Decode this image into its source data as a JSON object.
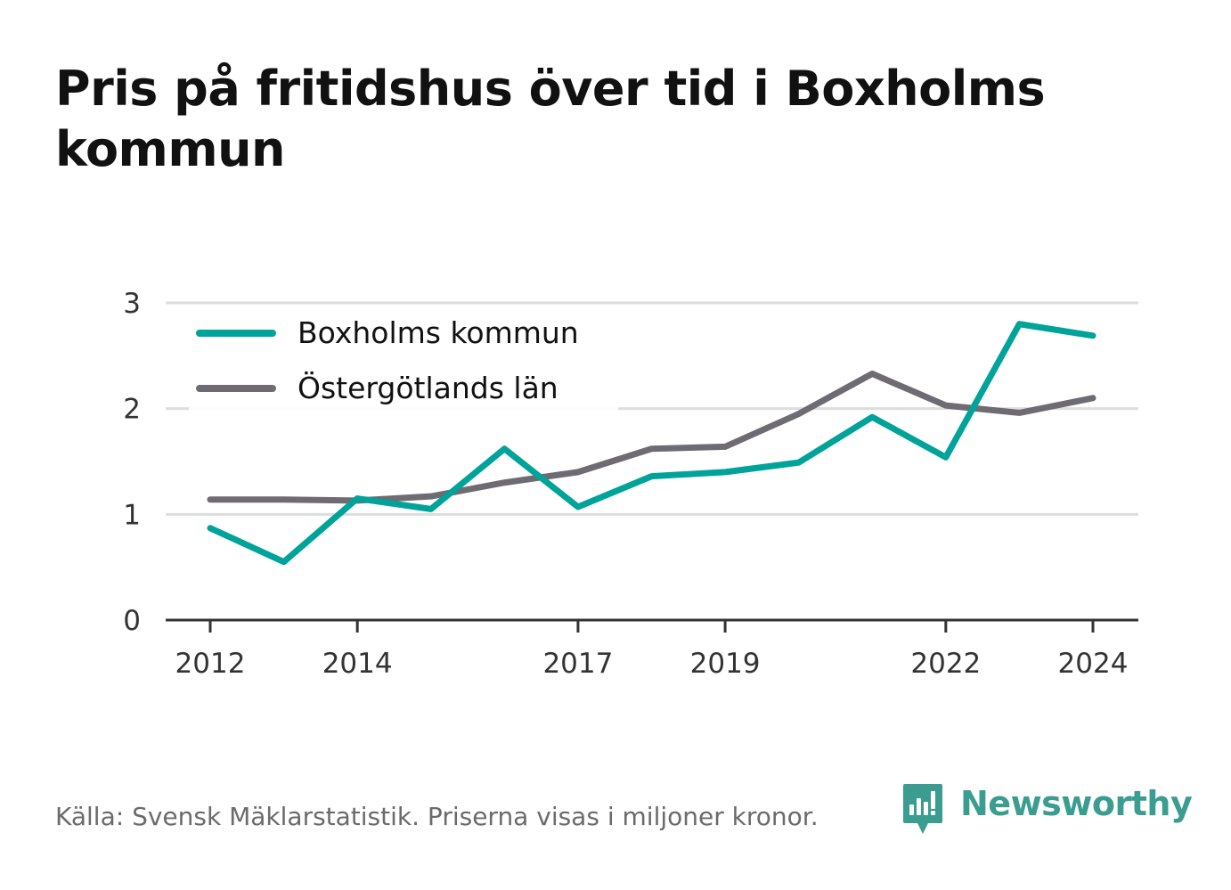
{
  "title": "Pris på fritidshus över tid i Boxholms kommun",
  "source": "Källa: Svensk Mäklarstatistik. Priserna visas i miljoner kronor.",
  "brand": {
    "name": "Newsworthy",
    "icon": "newsworthy-logo-icon",
    "color": "#3a9d8f"
  },
  "chart_data": {
    "type": "line",
    "title": "Pris på fritidshus över tid i Boxholms kommun",
    "xlabel": "",
    "ylabel": "",
    "x": [
      2012,
      2013,
      2014,
      2015,
      2016,
      2017,
      2018,
      2019,
      2020,
      2021,
      2022,
      2023,
      2024
    ],
    "x_ticks": [
      "2012",
      "2014",
      "2017",
      "2019",
      "2022",
      "2024"
    ],
    "y_ticks": [
      "0",
      "1",
      "2",
      "3"
    ],
    "ylim": [
      0,
      3
    ],
    "grid": true,
    "legend_position": "top-left",
    "series": [
      {
        "name": "Boxholms kommun",
        "color": "#00a39a",
        "values": [
          0.87,
          0.55,
          1.15,
          1.05,
          1.62,
          1.07,
          1.36,
          1.4,
          1.49,
          1.92,
          1.54,
          2.8,
          2.69
        ]
      },
      {
        "name": "Östergötlands län",
        "color": "#6e6c72",
        "values": [
          1.14,
          1.14,
          1.13,
          1.17,
          1.3,
          1.4,
          1.62,
          1.64,
          1.95,
          2.33,
          2.03,
          1.96,
          2.1
        ]
      }
    ]
  }
}
